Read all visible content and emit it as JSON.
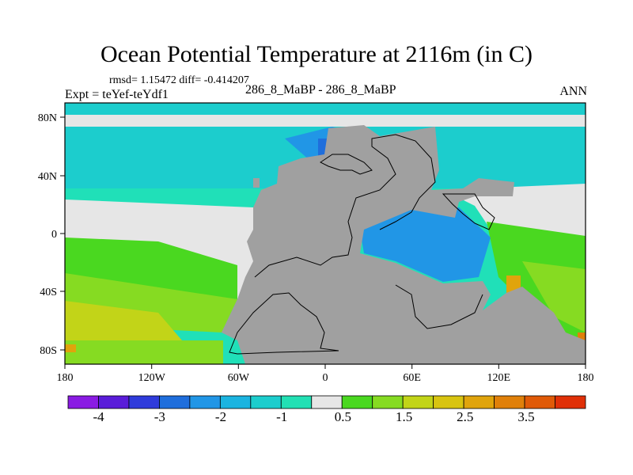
{
  "title": "Ocean Potential Temperature at 2116m (in C)",
  "stats_text": "rmsd= 1.15472 diff= -0.414207",
  "expt_text": "Expt = teYef-teYdf1",
  "center_label": "286_8_MaBP - 286_8_MaBP",
  "season": "ANN",
  "map": {
    "projection": "cylindrical-equidistant",
    "lon_range": [
      -180,
      180
    ],
    "lat_range": [
      -90,
      90
    ],
    "x_ticks": [
      "180",
      "120W",
      "60W",
      "0",
      "60E",
      "120E",
      "180"
    ],
    "y_ticks": [
      "80N",
      "40N",
      "0",
      "40S",
      "80S"
    ],
    "land_color": "#a0a0a0"
  },
  "colorbar": {
    "colors": [
      "#8a1be3",
      "#5a1cd9",
      "#2f3bdb",
      "#1f6edc",
      "#2196e6",
      "#1bb4e0",
      "#1ccdcd",
      "#22e0b4",
      "#e6e6e6",
      "#4ad820",
      "#86db22",
      "#c2d418",
      "#d8c410",
      "#e0a40c",
      "#e0800a",
      "#e05a08",
      "#e03008"
    ],
    "labels": [
      "-4",
      "-3",
      "-2",
      "-1",
      "0.5",
      "1.5",
      "2.5",
      "3.5"
    ]
  }
}
